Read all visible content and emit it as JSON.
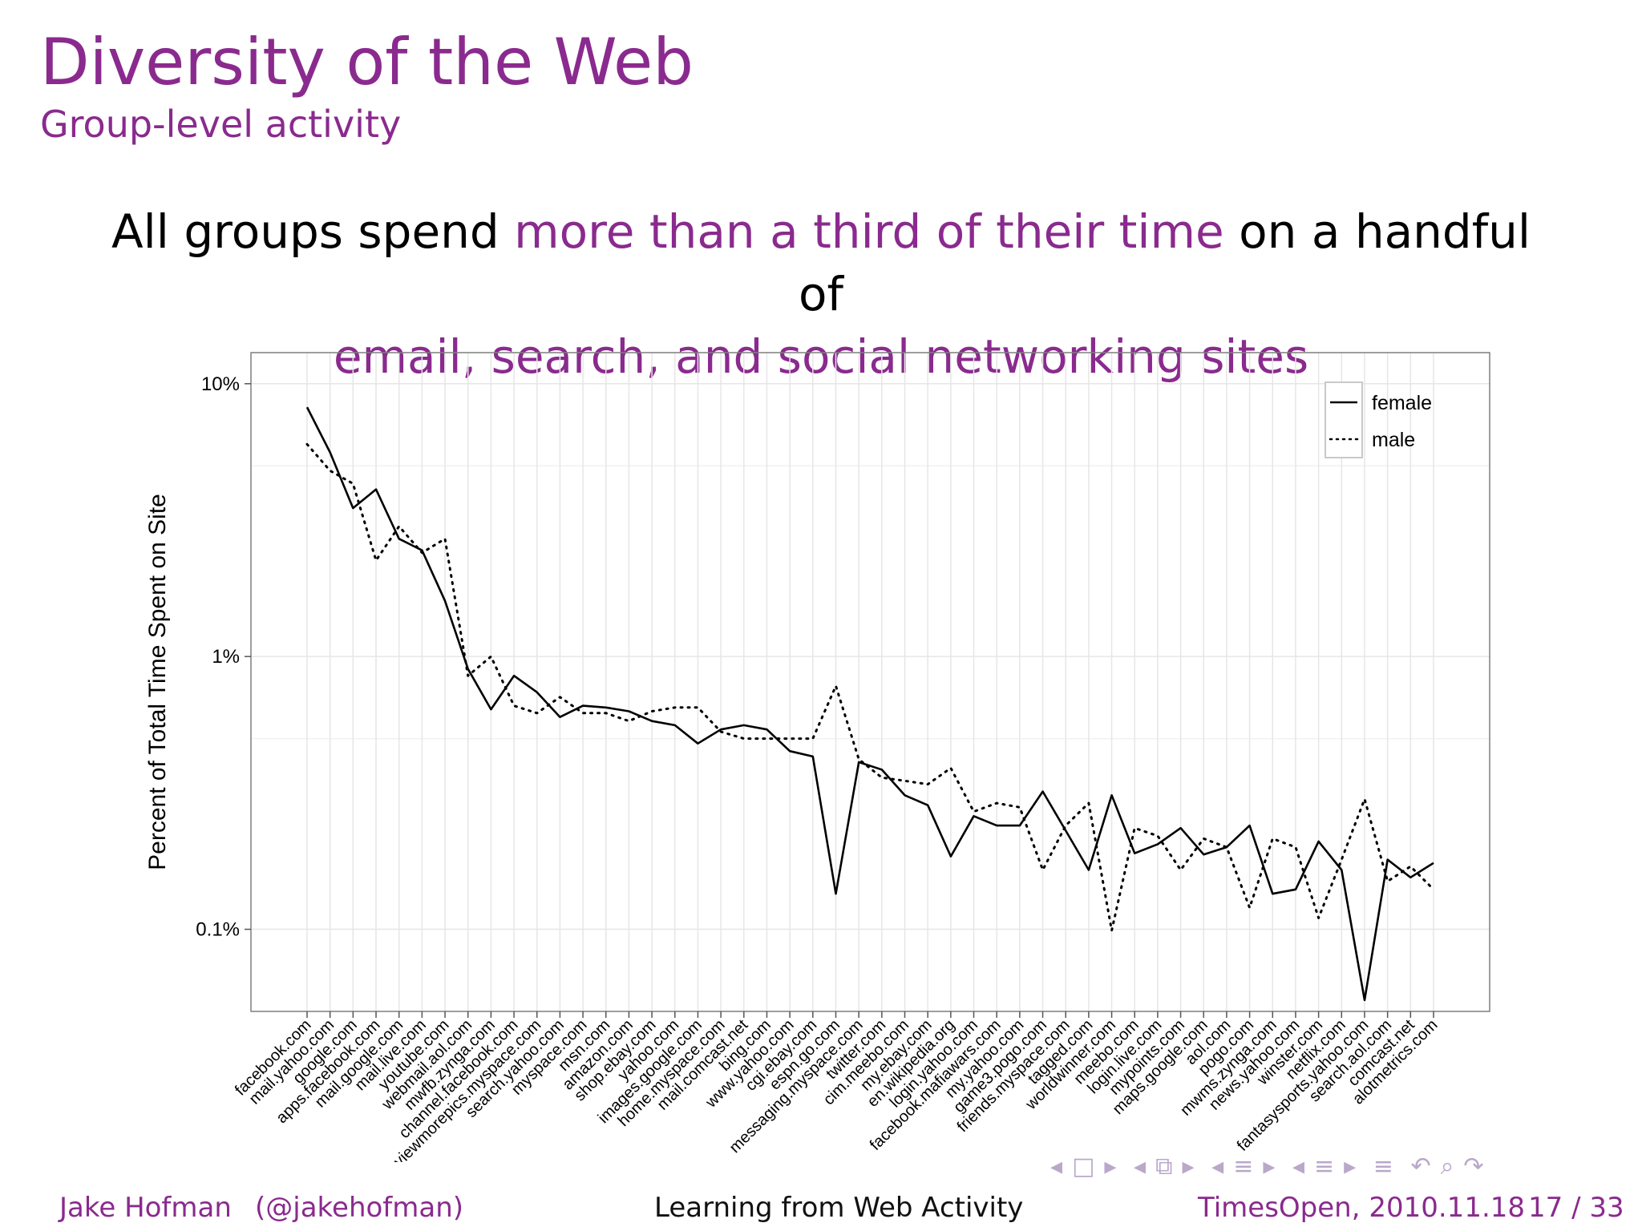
{
  "slide": {
    "title": "Diversity of the Web",
    "subtitle": "Group-level activity",
    "headline_parts": [
      {
        "text": "All groups spend ",
        "accent": false
      },
      {
        "text": "more than a third of their time",
        "accent": true
      },
      {
        "text": " on a handful of ",
        "accent": false
      },
      {
        "text": "email, search, and social networking sites",
        "accent": true
      }
    ],
    "accent_color": "#8a2a8e"
  },
  "footer": {
    "author": "Jake Hofman",
    "handle": "(@jakehofman)",
    "talk_title": "Learning from Web Activity",
    "event_date": "TimesOpen, 2010.11.18",
    "page": "17 / 33"
  },
  "nav": {
    "icons": [
      "nav-left-arrow",
      "frame-icon",
      "nav-right-arrow",
      "nav-left-arrow",
      "frames-icon",
      "nav-right-arrow",
      "nav-left-arrow",
      "subsection-icon",
      "nav-right-arrow",
      "nav-left-arrow",
      "section-icon",
      "nav-right-arrow",
      "align-icon",
      "undo-icon",
      "search-icon",
      "redo-icon"
    ]
  },
  "chart_data": {
    "type": "line",
    "xlabel": "",
    "ylabel": "Percent of Total Time Spent on Site",
    "y_scale": "log",
    "ylim": [
      0.05,
      13
    ],
    "yticks": [
      {
        "value": 10,
        "label": "10%"
      },
      {
        "value": 1,
        "label": "1%"
      },
      {
        "value": 0.1,
        "label": "0.1%"
      }
    ],
    "grid": true,
    "legend_position": "top-right",
    "categories": [
      "facebook.com",
      "mail.yahoo.com",
      "google.com",
      "apps.facebook.com",
      "mail.google.com",
      "mail.live.com",
      "youtube.com",
      "webmail.aol.com",
      "mwfb.zynga.com",
      "channel.facebook.com",
      "viewmorepics.myspace.com",
      "search.yahoo.com",
      "myspace.com",
      "msn.com",
      "amazon.com",
      "shop.ebay.com",
      "yahoo.com",
      "images.google.com",
      "home.myspace.com",
      "mail.comcast.net",
      "bing.com",
      "www.yahoo.com",
      "cgi.ebay.com",
      "espn.go.com",
      "messaging.myspace.com",
      "twitter.com",
      "cim.meebo.com",
      "my.ebay.com",
      "en.wikipedia.org",
      "login.yahoo.com",
      "facebook.mafiawars.com",
      "my.yahoo.com",
      "game3.pogo.com",
      "friends.myspace.com",
      "tagged.com",
      "worldwinner.com",
      "meebo.com",
      "login.live.com",
      "mypoints.com",
      "maps.google.com",
      "aol.com",
      "pogo.com",
      "mwms.zynga.com",
      "news.yahoo.com",
      "winster.com",
      "netflix.com",
      "fantasysports.yahoo.com",
      "search.aol.com",
      "comcast.net",
      "alotmetrics.com"
    ],
    "series": [
      {
        "name": "female",
        "style": "solid",
        "values": [
          8.2,
          5.6,
          3.5,
          4.1,
          2.7,
          2.45,
          1.6,
          0.9,
          0.64,
          0.85,
          0.74,
          0.6,
          0.66,
          0.65,
          0.63,
          0.58,
          0.56,
          0.48,
          0.54,
          0.56,
          0.54,
          0.45,
          0.43,
          0.135,
          0.41,
          0.385,
          0.31,
          0.285,
          0.185,
          0.26,
          0.24,
          0.24,
          0.32,
          0.23,
          0.165,
          0.31,
          0.19,
          0.205,
          0.235,
          0.188,
          0.2,
          0.24,
          0.135,
          0.14,
          0.21,
          0.165,
          0.055,
          0.18,
          0.155,
          0.175
        ]
      },
      {
        "name": "male",
        "style": "dotted",
        "values": [
          6.0,
          4.8,
          4.3,
          2.25,
          3.0,
          2.4,
          2.7,
          0.85,
          1.0,
          0.66,
          0.62,
          0.71,
          0.62,
          0.62,
          0.58,
          0.63,
          0.65,
          0.65,
          0.53,
          0.5,
          0.5,
          0.5,
          0.5,
          0.78,
          0.42,
          0.36,
          0.35,
          0.34,
          0.39,
          0.27,
          0.29,
          0.28,
          0.165,
          0.24,
          0.29,
          0.099,
          0.235,
          0.22,
          0.165,
          0.215,
          0.2,
          0.12,
          0.215,
          0.2,
          0.11,
          0.18,
          0.3,
          0.15,
          0.17,
          0.14
        ]
      }
    ]
  }
}
